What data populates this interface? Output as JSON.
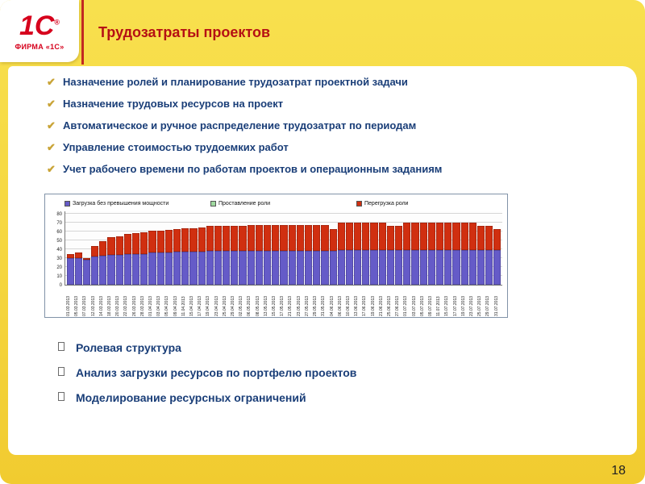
{
  "logo": {
    "brand": "1С",
    "registered": "®",
    "subtitle": "ФИРМА «1С»"
  },
  "header": {
    "title": "Трудозатраты проектов"
  },
  "features": {
    "items": [
      "Назначение ролей и планирование трудозатрат проектной задачи",
      "Назначение трудовых ресурсов на проект",
      "Автоматическое и ручное распределение трудозатрат по периодам",
      "Управление стоимостью трудоемких работ",
      "Учет рабочего времени по работам проектов и операционным заданиям"
    ]
  },
  "capabilities": {
    "items": [
      "Ролевая структура",
      "Анализ загрузки ресурсов по портфелю проектов",
      "Моделирование ресурсных ограничений"
    ]
  },
  "footer": {
    "page_number": "18"
  },
  "colors": {
    "brand_red": "#d6001c",
    "title_red": "#b51014",
    "text_blue": "#1a3e78",
    "slide_yellow": "#f5d63e",
    "check_gold": "#c9a437"
  },
  "chart_data": {
    "type": "bar",
    "stacked": true,
    "title": "",
    "xlabel": "",
    "ylabel": "",
    "ylim": [
      0,
      80
    ],
    "yticks": [
      0,
      10,
      20,
      30,
      40,
      50,
      60,
      70,
      80
    ],
    "legend_position": "top",
    "grid": true,
    "categories": [
      "01.03.2013",
      "05.03.2013",
      "07.03.2013",
      "12.03.2013",
      "14.03.2013",
      "18.03.2013",
      "20.03.2013",
      "22.03.2013",
      "26.03.2013",
      "28.03.2013",
      "01.04.2013",
      "03.04.2013",
      "05.04.2013",
      "09.04.2013",
      "11.04.2013",
      "15.04.2013",
      "17.04.2013",
      "19.04.2013",
      "23.04.2013",
      "25.04.2013",
      "29.04.2013",
      "02.05.2013",
      "06.05.2013",
      "08.05.2013",
      "13.05.2013",
      "15.05.2013",
      "17.05.2013",
      "21.05.2013",
      "23.05.2013",
      "27.05.2013",
      "29.05.2013",
      "31.05.2013",
      "04.06.2013",
      "06.06.2013",
      "10.06.2013",
      "13.06.2013",
      "17.06.2013",
      "19.06.2013",
      "21.06.2013",
      "25.06.2013",
      "27.06.2013",
      "01.07.2013",
      "03.07.2013",
      "05.07.2013",
      "09.07.2013",
      "11.07.2013",
      "15.07.2013",
      "17.07.2013",
      "19.07.2013",
      "23.07.2013",
      "25.07.2013",
      "29.07.2013",
      "31.07.2013"
    ],
    "series": [
      {
        "name": "Загрузка без превышения мощности",
        "color": "#655bc8",
        "values": [
          30,
          30,
          28,
          32,
          33,
          34,
          34,
          35,
          35,
          35,
          36,
          36,
          36,
          37,
          37,
          37,
          37,
          38,
          38,
          38,
          38,
          38,
          38,
          38,
          38,
          38,
          38,
          38,
          38,
          38,
          38,
          38,
          38,
          39,
          39,
          39,
          39,
          39,
          39,
          39,
          39,
          39,
          39,
          39,
          39,
          39,
          39,
          39,
          39,
          39,
          39,
          39,
          39
        ]
      },
      {
        "name": "Проставление роли",
        "color": "#9fd99f",
        "values": [
          0,
          0,
          0,
          0,
          0,
          0,
          0,
          0,
          0,
          0,
          0,
          0,
          0,
          0,
          0,
          0,
          0,
          0,
          0,
          0,
          0,
          0,
          0,
          0,
          0,
          0,
          0,
          0,
          0,
          0,
          0,
          0,
          0,
          0,
          0,
          0,
          0,
          0,
          0,
          0,
          0,
          0,
          0,
          0,
          0,
          0,
          0,
          0,
          0,
          0,
          0,
          0,
          0
        ]
      },
      {
        "name": "Перегрузка роли",
        "color": "#d02f10",
        "values": [
          5,
          6,
          2,
          12,
          16,
          20,
          21,
          22,
          23,
          24,
          25,
          25,
          26,
          26,
          27,
          27,
          28,
          28,
          28,
          28,
          28,
          28,
          29,
          29,
          29,
          29,
          29,
          29,
          29,
          29,
          29,
          29,
          25,
          31,
          31,
          31,
          31,
          31,
          31,
          27,
          27,
          31,
          31,
          31,
          31,
          31,
          31,
          31,
          31,
          31,
          27,
          27,
          24
        ]
      }
    ]
  }
}
